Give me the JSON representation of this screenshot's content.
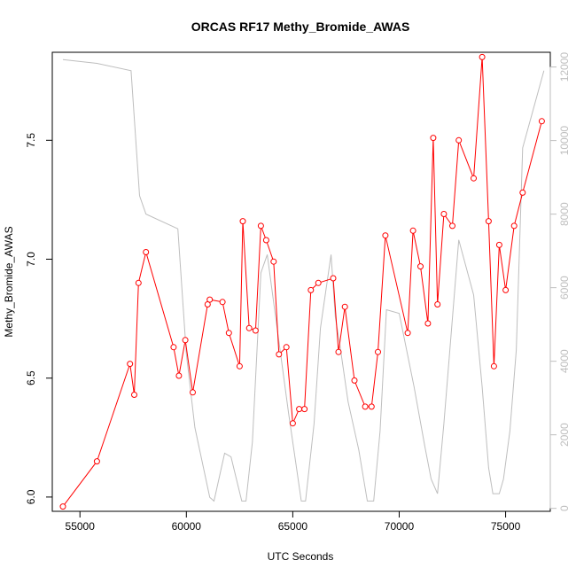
{
  "chart_data": {
    "type": "line",
    "title": "ORCAS RF17 Methy_Bromide_AWAS",
    "xlabel": "UTC Seconds",
    "ylabel": "Methy_Bromide_AWAS",
    "xlim": [
      53700,
      77100
    ],
    "ylim": [
      5.94,
      7.87
    ],
    "y2lim": [
      -80,
      12400
    ],
    "x_ticks": [
      55000,
      60000,
      65000,
      70000,
      75000
    ],
    "y_ticks": [
      6.0,
      6.5,
      7.0,
      7.5
    ],
    "y_tick_labels": [
      "6.0",
      "6.5",
      "7.0",
      "7.5"
    ],
    "y2_ticks": [
      0,
      2000,
      4000,
      6000,
      8000,
      10000,
      12000
    ],
    "grid": false,
    "colors": {
      "primary": "#ff0000",
      "secondary": "#bebebe"
    },
    "series": [
      {
        "axis": "left",
        "marker": "open-circle",
        "color": "#ff0000",
        "x": [
          54200,
          55800,
          57350,
          57550,
          57750,
          58100,
          59400,
          59650,
          59950,
          60300,
          61000,
          61100,
          61700,
          62000,
          62500,
          62650,
          62950,
          63250,
          63500,
          63750,
          64100,
          64350,
          64700,
          65000,
          65300,
          65550,
          65850,
          66200,
          66900,
          67150,
          67450,
          67900,
          68400,
          68700,
          69000,
          69350,
          70400,
          70650,
          71000,
          71350,
          71600,
          71800,
          72100,
          72500,
          72800,
          73500,
          73900,
          74200,
          74450,
          74700,
          75000,
          75400,
          75800,
          76700
        ],
        "y": [
          5.96,
          6.15,
          6.56,
          6.43,
          6.9,
          7.03,
          6.63,
          6.51,
          6.66,
          6.44,
          6.81,
          6.83,
          6.82,
          6.69,
          6.55,
          7.16,
          6.71,
          6.7,
          7.14,
          7.08,
          6.99,
          6.6,
          6.63,
          6.31,
          6.37,
          6.37,
          6.87,
          6.9,
          6.92,
          6.61,
          6.8,
          6.49,
          6.38,
          6.38,
          6.61,
          7.1,
          6.69,
          7.12,
          6.97,
          6.73,
          7.51,
          6.81,
          7.19,
          7.14,
          7.5,
          7.34,
          7.85,
          7.16,
          6.55,
          7.06,
          6.87,
          7.14,
          7.28,
          7.58
        ]
      },
      {
        "axis": "right",
        "color": "#bebebe",
        "x": [
          54200,
          55800,
          57400,
          57800,
          58100,
          59600,
          60000,
          60400,
          61100,
          61300,
          61800,
          62100,
          62600,
          62800,
          63100,
          63500,
          63800,
          64100,
          64800,
          65100,
          65400,
          65600,
          66000,
          66300,
          66800,
          67000,
          67200,
          67600,
          68100,
          68500,
          68800,
          69100,
          69400,
          70000,
          70700,
          71200,
          71500,
          71800,
          72100,
          72800,
          73500,
          73900,
          74200,
          74400,
          74700,
          74900,
          75200,
          75500,
          75800,
          76800
        ],
        "y": [
          12200,
          12100,
          11900,
          8500,
          8000,
          7600,
          4200,
          2200,
          300,
          200,
          1500,
          1400,
          200,
          200,
          1800,
          6400,
          6900,
          5600,
          2600,
          1400,
          200,
          200,
          2300,
          4900,
          6900,
          5200,
          4500,
          2900,
          1600,
          200,
          200,
          2100,
          5400,
          5300,
          3300,
          1700,
          800,
          400,
          2300,
          7300,
          5800,
          3300,
          1100,
          400,
          400,
          800,
          2100,
          4300,
          9800,
          11900
        ]
      }
    ]
  }
}
